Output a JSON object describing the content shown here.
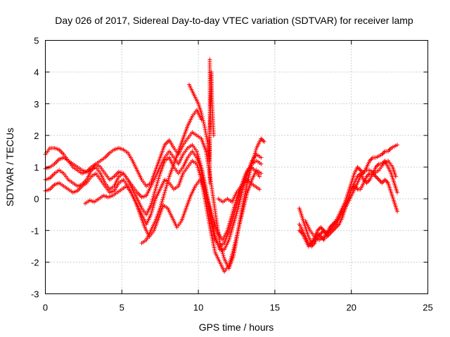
{
  "chart_data": {
    "type": "scatter",
    "title": "Day 026 of 2017, Sidereal Day-to-day VTEC variation (SDTVAR) for receiver lamp",
    "xlabel": "GPS time / hours",
    "ylabel": "SDTVAR / TECUs",
    "xlim": [
      0,
      25
    ],
    "ylim": [
      -3,
      5
    ],
    "xticks": [
      0,
      5,
      10,
      15,
      20,
      25
    ],
    "yticks": [
      -3,
      -2,
      -1,
      0,
      1,
      2,
      3,
      4,
      5
    ],
    "grid": true,
    "marker": "plus",
    "color": "#ff0000",
    "series": [
      {
        "x": [
          0.0,
          0.3,
          0.6,
          0.9,
          1.2,
          1.5,
          1.8,
          2.1,
          2.4,
          2.7,
          3.0,
          3.3,
          3.6,
          3.9,
          4.2,
          4.5,
          4.8,
          5.1,
          5.4,
          5.7,
          6.0,
          6.3,
          6.6,
          6.9,
          7.2,
          7.5,
          7.8,
          8.1,
          8.4,
          8.7,
          9.0,
          9.3,
          9.6,
          9.9,
          10.2,
          10.5,
          10.8,
          11.1,
          11.4,
          11.7,
          12.0,
          12.3,
          12.6,
          12.9,
          13.2,
          13.5,
          13.8,
          14.1,
          14.3
        ],
        "y": [
          1.4,
          1.6,
          1.6,
          1.55,
          1.4,
          1.2,
          1.1,
          1.0,
          0.9,
          0.85,
          0.9,
          1.1,
          1.2,
          1.3,
          1.45,
          1.55,
          1.6,
          1.55,
          1.45,
          1.2,
          0.9,
          0.6,
          0.4,
          0.5,
          0.9,
          1.3,
          1.7,
          1.85,
          1.6,
          1.4,
          1.7,
          1.9,
          2.1,
          2.0,
          1.9,
          1.5,
          0.6,
          -0.4,
          -1.4,
          -1.9,
          -2.2,
          -1.8,
          -1.0,
          -0.2,
          0.5,
          1.1,
          1.6,
          1.9,
          1.8
        ]
      },
      {
        "x": [
          0.0,
          0.3,
          0.6,
          0.9,
          1.2,
          1.5,
          1.8,
          2.1,
          2.4,
          2.7,
          3.0,
          3.3,
          3.6,
          3.9,
          4.2,
          4.5,
          4.8,
          5.1,
          5.4,
          5.7,
          6.0,
          6.3,
          6.6,
          6.9,
          7.2,
          7.5,
          7.8,
          8.1,
          8.4,
          8.7,
          9.0,
          9.3,
          9.6,
          9.9,
          10.2,
          10.5,
          10.8,
          11.1,
          11.4,
          11.7,
          12.0,
          12.3,
          12.6,
          12.9,
          13.2,
          13.5,
          13.8,
          14.1
        ],
        "y": [
          0.95,
          1.0,
          1.1,
          1.25,
          1.3,
          1.2,
          1.0,
          0.9,
          0.8,
          0.85,
          1.0,
          1.1,
          1.0,
          0.8,
          0.6,
          0.7,
          0.85,
          0.8,
          0.6,
          0.4,
          0.2,
          0.05,
          0.1,
          0.4,
          0.7,
          1.0,
          1.3,
          1.5,
          1.3,
          1.1,
          1.4,
          1.6,
          1.7,
          1.5,
          1.0,
          0.3,
          -0.5,
          -1.2,
          -1.6,
          -1.6,
          -1.3,
          -0.8,
          -0.3,
          0.3,
          0.8,
          1.2,
          1.4,
          1.3
        ]
      },
      {
        "x": [
          0.0,
          0.3,
          0.6,
          0.9,
          1.2,
          1.5,
          1.8,
          2.1,
          2.4,
          2.7,
          3.0,
          3.3,
          3.6,
          3.9,
          4.2,
          4.5,
          4.8,
          5.1,
          5.4,
          5.7,
          6.0,
          6.3,
          6.6,
          6.9,
          7.2,
          7.5,
          7.8,
          8.1,
          8.4,
          8.7,
          9.0,
          9.3,
          9.6,
          9.9,
          10.2,
          10.5,
          10.8,
          11.1,
          11.4,
          11.7,
          12.0,
          12.3,
          12.6,
          12.9,
          13.2,
          13.5,
          13.8,
          14.1
        ],
        "y": [
          0.6,
          0.65,
          0.8,
          0.9,
          0.8,
          0.6,
          0.5,
          0.4,
          0.45,
          0.6,
          0.9,
          1.0,
          0.8,
          0.5,
          0.3,
          0.4,
          0.7,
          0.8,
          0.6,
          0.3,
          0.0,
          -0.3,
          -0.5,
          -0.2,
          0.3,
          0.8,
          1.2,
          1.3,
          1.0,
          0.8,
          1.0,
          1.3,
          1.5,
          1.3,
          0.9,
          0.2,
          -0.6,
          -1.3,
          -1.5,
          -1.4,
          -1.0,
          -0.5,
          0.0,
          0.5,
          0.9,
          1.1,
          1.2,
          1.1
        ]
      },
      {
        "x": [
          0.0,
          0.3,
          0.6,
          0.9,
          1.2,
          1.5,
          1.8,
          2.1,
          2.4,
          2.7,
          3.0,
          3.3,
          3.6,
          3.9,
          4.2,
          4.5,
          4.8,
          5.1,
          5.4,
          5.7,
          6.0,
          6.3,
          6.6,
          6.9,
          7.2,
          7.5,
          7.8,
          8.1,
          8.4,
          8.7,
          9.0,
          9.3,
          9.6,
          9.9,
          10.2,
          10.5,
          10.8,
          11.1,
          11.4,
          11.7,
          12.0,
          12.3,
          12.6,
          12.9,
          13.2,
          13.5,
          13.8,
          14.1
        ],
        "y": [
          0.25,
          0.3,
          0.45,
          0.5,
          0.4,
          0.3,
          0.2,
          0.25,
          0.4,
          0.5,
          0.7,
          0.8,
          0.6,
          0.4,
          0.2,
          0.25,
          0.5,
          0.6,
          0.4,
          0.1,
          -0.2,
          -0.5,
          -0.8,
          -0.5,
          0.0,
          0.3,
          0.6,
          0.5,
          0.3,
          0.4,
          0.8,
          1.0,
          1.2,
          1.1,
          0.6,
          -0.2,
          -1.0,
          -1.7,
          -2.0,
          -2.3,
          -2.1,
          -1.6,
          -1.0,
          -0.4,
          0.2,
          0.6,
          0.9,
          0.8
        ]
      },
      {
        "x": [
          2.6,
          2.9,
          3.2,
          3.5,
          3.8,
          4.1,
          4.4,
          4.7,
          5.0,
          5.3,
          5.6,
          5.9,
          6.2,
          6.5,
          6.8,
          7.1,
          7.4,
          7.7,
          8.0,
          8.3,
          8.6,
          8.9,
          9.2,
          9.5,
          9.8,
          10.1,
          10.4,
          10.7,
          11.0,
          11.3,
          11.6,
          11.9,
          12.2,
          12.5,
          12.8,
          13.1,
          13.4,
          13.7,
          14.0
        ],
        "y": [
          -0.15,
          -0.05,
          -0.1,
          0.0,
          0.1,
          0.05,
          0.1,
          0.2,
          0.3,
          0.4,
          0.2,
          -0.1,
          -0.5,
          -0.9,
          -1.2,
          -1.0,
          -0.6,
          -0.2,
          -0.3,
          -0.6,
          -0.9,
          -0.7,
          -0.3,
          0.1,
          0.4,
          0.6,
          0.3,
          -0.2,
          -0.7,
          -1.1,
          -1.3,
          -1.0,
          -0.5,
          0.0,
          0.4,
          0.8,
          1.0,
          0.9,
          0.7
        ]
      },
      {
        "x": [
          6.3,
          6.6,
          6.9,
          7.2,
          7.5,
          7.8,
          8.1,
          8.4,
          8.7,
          9.0,
          9.3,
          9.6,
          9.9,
          10.2
        ],
        "y": [
          -1.4,
          -1.3,
          -1.0,
          -0.7,
          -0.3,
          0.2,
          0.7,
          1.1,
          1.5,
          1.9,
          2.3,
          2.6,
          2.8,
          2.5
        ]
      },
      {
        "x": [
          9.4,
          9.6,
          9.8,
          10.0,
          10.2,
          10.4,
          10.6,
          10.7,
          10.75,
          10.8,
          10.85,
          10.9,
          11.0
        ],
        "y": [
          3.6,
          3.4,
          3.2,
          3.0,
          2.7,
          2.3,
          1.8,
          1.2,
          2.0,
          3.0,
          4.0,
          3.0,
          2.0
        ]
      },
      {
        "x": [
          10.75,
          10.75,
          10.75,
          10.75,
          10.75,
          10.75,
          10.75,
          10.75,
          10.75,
          10.75,
          10.75,
          10.75,
          10.75,
          10.75
        ],
        "y": [
          4.4,
          4.1,
          3.8,
          3.5,
          3.2,
          2.9,
          2.6,
          2.3,
          2.0,
          1.7,
          1.4,
          1.1,
          0.8,
          0.5
        ]
      },
      {
        "x": [
          11.3,
          11.6,
          11.9,
          12.2,
          12.5,
          12.8,
          13.1,
          13.4,
          13.7,
          14.0
        ],
        "y": [
          0.0,
          -0.1,
          0.0,
          -0.1,
          0.2,
          0.4,
          0.6,
          0.5,
          0.4,
          0.3
        ]
      },
      {
        "x": [
          16.6,
          16.8,
          17.0,
          17.2,
          17.4,
          17.6,
          17.8,
          18.0,
          18.2,
          18.4,
          18.6,
          18.8,
          19.0,
          19.2,
          19.4,
          19.6,
          19.8,
          20.0,
          20.2,
          20.4,
          20.6,
          20.8,
          21.0,
          21.2,
          21.4,
          21.6,
          21.8,
          22.0,
          22.2,
          22.4,
          22.6,
          22.8,
          23.0
        ],
        "y": [
          -0.3,
          -0.6,
          -0.9,
          -1.2,
          -1.4,
          -1.3,
          -1.1,
          -1.2,
          -1.3,
          -1.1,
          -0.9,
          -0.8,
          -0.7,
          -0.5,
          -0.3,
          -0.1,
          0.2,
          0.5,
          0.8,
          1.0,
          0.9,
          0.8,
          1.0,
          1.2,
          1.3,
          1.3,
          1.35,
          1.4,
          1.5,
          1.5,
          1.6,
          1.65,
          1.7
        ]
      },
      {
        "x": [
          16.6,
          16.8,
          17.0,
          17.2,
          17.4,
          17.6,
          17.8,
          18.0,
          18.2,
          18.4,
          18.6,
          18.8,
          19.0,
          19.2,
          19.4,
          19.6,
          19.8,
          20.0,
          20.2,
          20.4,
          20.6,
          20.8,
          21.0,
          21.2,
          21.4,
          21.6,
          21.8,
          22.0,
          22.2,
          22.4,
          22.6,
          22.8,
          23.0
        ],
        "y": [
          -0.8,
          -1.0,
          -1.2,
          -1.4,
          -1.5,
          -1.4,
          -1.2,
          -1.1,
          -1.0,
          -1.1,
          -1.0,
          -0.9,
          -0.8,
          -0.6,
          -0.4,
          -0.2,
          0.0,
          0.3,
          0.5,
          0.7,
          0.8,
          0.6,
          0.5,
          0.6,
          0.8,
          1.0,
          1.1,
          1.1,
          1.2,
          1.0,
          0.8,
          0.5,
          0.2
        ]
      },
      {
        "x": [
          16.6,
          16.8,
          17.0,
          17.2,
          17.4,
          17.6,
          17.8,
          18.0,
          18.2,
          18.4,
          18.6,
          18.8,
          19.0,
          19.2,
          19.4,
          19.6,
          19.8,
          20.0,
          20.2,
          20.4,
          20.6,
          20.8,
          21.0,
          21.2,
          21.4,
          21.6,
          21.8,
          22.0,
          22.2,
          22.4,
          22.6,
          22.8,
          23.0
        ],
        "y": [
          -1.0,
          -1.1,
          -1.3,
          -1.5,
          -1.4,
          -1.2,
          -1.0,
          -0.9,
          -1.0,
          -1.2,
          -1.1,
          -1.0,
          -0.9,
          -0.8,
          -0.6,
          -0.3,
          0.0,
          0.3,
          0.4,
          0.3,
          0.3,
          0.5,
          0.7,
          0.8,
          0.8,
          0.7,
          0.6,
          0.5,
          0.6,
          0.5,
          0.2,
          -0.1,
          -0.4
        ]
      },
      {
        "x": [
          17.0,
          17.3,
          17.6,
          17.9,
          18.2,
          18.5,
          18.8,
          19.1,
          19.4,
          19.7,
          20.0,
          20.3,
          20.6,
          20.9,
          21.2,
          21.5,
          21.8,
          22.1,
          22.4,
          22.7,
          22.9
        ],
        "y": [
          -0.7,
          -1.0,
          -1.2,
          -1.3,
          -1.2,
          -1.0,
          -0.8,
          -0.7,
          -0.5,
          -0.2,
          0.1,
          0.4,
          0.7,
          0.9,
          0.9,
          0.8,
          0.9,
          1.1,
          1.2,
          1.0,
          0.7
        ]
      }
    ]
  }
}
